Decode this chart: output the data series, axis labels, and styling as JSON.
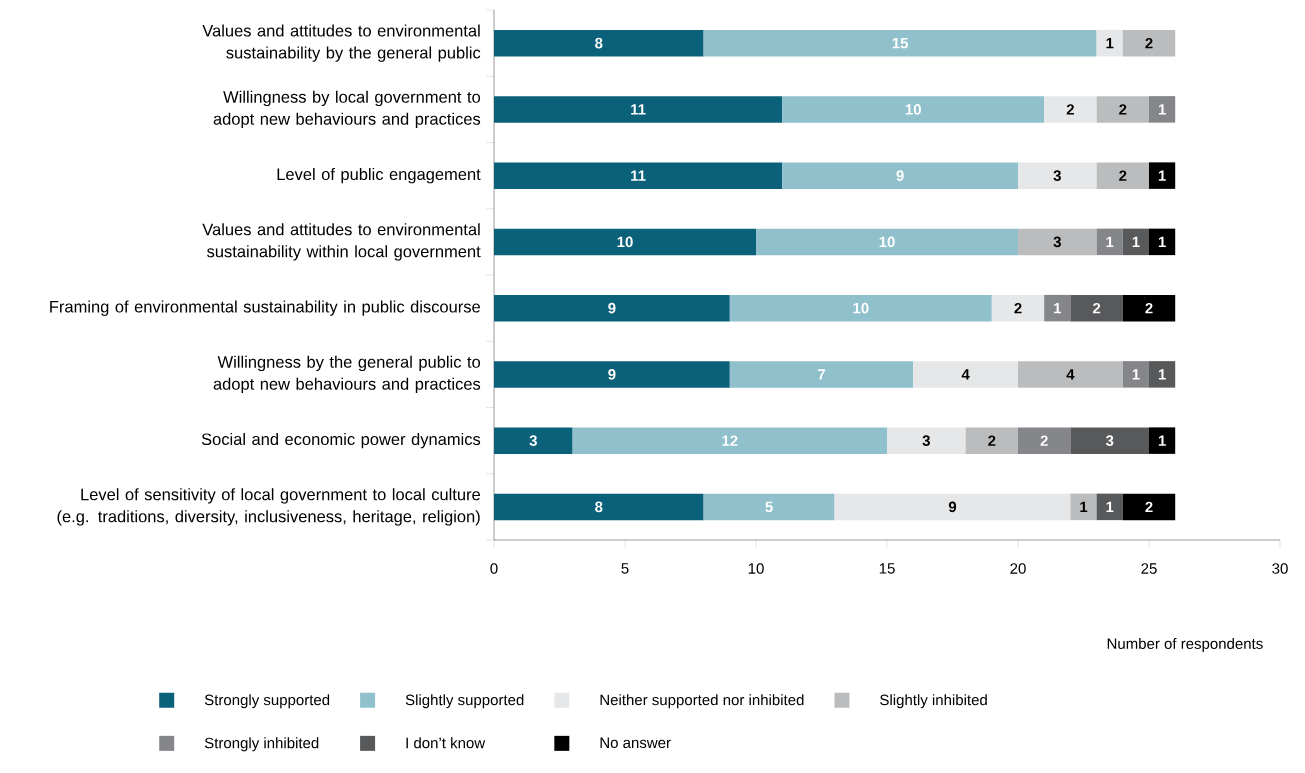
{
  "chart_data": {
    "type": "bar",
    "orientation": "horizontal",
    "stacked": true,
    "data_labels": true,
    "grid": false,
    "legend": "bottom",
    "xlabel": "Number of respondents",
    "xlim": [
      0,
      30
    ],
    "xticks": [
      0,
      5,
      10,
      15,
      20,
      25,
      30
    ],
    "categories": [
      "Values and attitudes to environmental sustainability by the general public",
      "Willingness by local government to adopt new behaviours and practices",
      "Level of public engagement",
      "Values and attitudes to environmental sustainability within local government",
      "Framing of environmental sustainability in public discourse",
      "Willingness by the general public to adopt new behaviours and practices",
      "Social and economic power dynamics",
      "Level of sensitivity of local government to local culture (e.g. traditions, diversity, inclusiveness, heritage, religion)"
    ],
    "series": [
      {
        "name": "Strongly supported",
        "color": "#0b607a",
        "values": [
          8,
          11,
          11,
          10,
          9,
          9,
          3,
          8
        ]
      },
      {
        "name": "Slightly supported",
        "color": "#8fc0cc",
        "values": [
          15,
          10,
          9,
          10,
          10,
          7,
          12,
          5
        ]
      },
      {
        "name": "Neither supported nor inhibited",
        "color": "#e6e7e8",
        "values": [
          1,
          2,
          3,
          null,
          2,
          4,
          3,
          9
        ]
      },
      {
        "name": "Slightly inhibited",
        "color": "#bbbcbe",
        "values": [
          2,
          2,
          2,
          3,
          null,
          4,
          2,
          1
        ]
      },
      {
        "name": "Strongly inhibited",
        "color": "#858689",
        "values": [
          null,
          1,
          null,
          1,
          1,
          1,
          2,
          null
        ]
      },
      {
        "name": "I don’t know",
        "color": "#58595b",
        "values": [
          null,
          null,
          null,
          1,
          2,
          1,
          3,
          1
        ]
      },
      {
        "name": "No answer",
        "color": "#000000",
        "values": [
          null,
          null,
          1,
          1,
          2,
          null,
          1,
          2
        ]
      }
    ]
  }
}
